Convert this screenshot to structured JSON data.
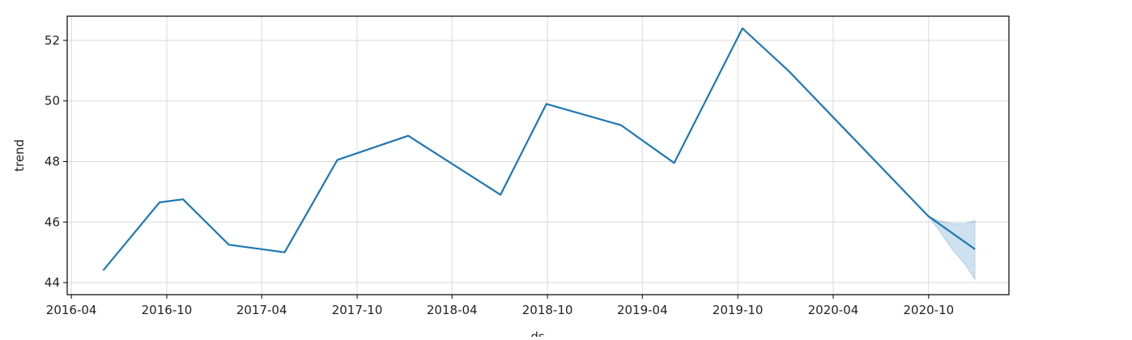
{
  "chart_data": {
    "type": "line",
    "xlabel": "ds",
    "ylabel": "trend",
    "xlim": [
      "2016-03-24",
      "2021-03-04"
    ],
    "ylim": [
      43.6,
      52.8
    ],
    "grid": true,
    "line_color": "#1f77b4",
    "band_color": "#1f77b4",
    "xticks": [
      "2016-04",
      "2016-10",
      "2017-04",
      "2017-10",
      "2018-04",
      "2018-10",
      "2019-04",
      "2019-10",
      "2020-04",
      "2020-10"
    ],
    "yticks": [
      44,
      46,
      48,
      50,
      52
    ],
    "series": [
      {
        "x": [
          "2016-06-01",
          "2016-09-17",
          "2016-11-01",
          "2017-01-28",
          "2017-05-15",
          "2017-08-24",
          "2018-01-07",
          "2018-07-03",
          "2018-09-29",
          "2019-02-19",
          "2019-06-01",
          "2019-10-10",
          "2020-01-06",
          "2020-09-30",
          "2020-12-29"
        ],
        "y": [
          44.4,
          46.65,
          46.75,
          45.25,
          45.0,
          48.05,
          48.85,
          46.9,
          49.9,
          49.2,
          47.95,
          52.4,
          51.0,
          46.2,
          45.1
        ]
      }
    ],
    "uncertainty_band": {
      "x": [
        "2020-09-30",
        "2020-10-20",
        "2020-11-15",
        "2020-12-10",
        "2020-12-29"
      ],
      "upper": [
        46.2,
        46.05,
        45.95,
        45.95,
        46.05
      ],
      "lower": [
        46.2,
        45.75,
        45.1,
        44.6,
        44.1
      ]
    }
  }
}
